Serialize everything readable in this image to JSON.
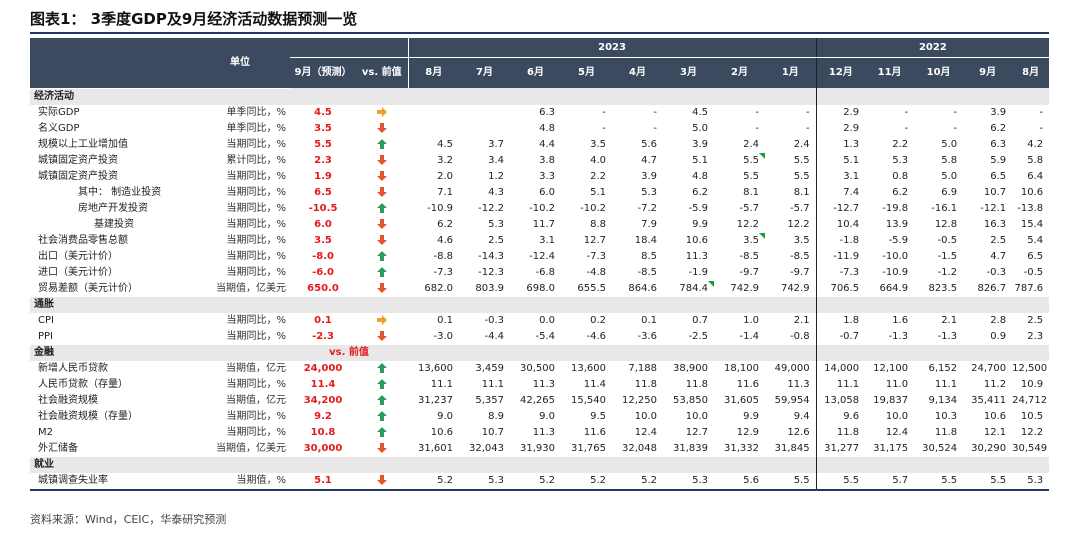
{
  "title": "图表1： 3季度GDP及9月经济活动数据预测一览",
  "source": "资料来源：Wind，CEIC，华泰研究预测",
  "header": {
    "unit_label": "单位",
    "forecast_label": "9月（预测）",
    "vs_label": "vs. 前值",
    "year_2023": "2023",
    "year_2022": "2022",
    "months_2023": [
      "8月",
      "7月",
      "6月",
      "5月",
      "4月",
      "3月",
      "2月",
      "1月"
    ],
    "months_2022": [
      "12月",
      "11月",
      "10月",
      "9月",
      "8月"
    ]
  },
  "colors": {
    "header_bg": "#3c4a60",
    "up": "#2e9b5e",
    "down": "#e0572a",
    "flat": "#f0a030",
    "forecast": "#e8191a"
  },
  "sections": [
    {
      "name": "经济活动",
      "vs_label": "",
      "rows": [
        {
          "label": "实际GDP",
          "indent": 1,
          "unit": "单季同比，%",
          "forecast": "4.5",
          "arrow": "flat",
          "values": [
            "",
            "",
            "6.3",
            "-",
            "-",
            "4.5",
            "-",
            "-"
          ],
          "values2022": [
            "2.9",
            "-",
            "-",
            "3.9",
            "-"
          ],
          "flags": []
        },
        {
          "label": "名义GDP",
          "indent": 1,
          "unit": "单季同比，%",
          "forecast": "3.5",
          "arrow": "down",
          "values": [
            "",
            "",
            "4.8",
            "-",
            "-",
            "5.0",
            "-",
            "-"
          ],
          "values2022": [
            "2.9",
            "-",
            "-",
            "6.2",
            "-"
          ],
          "flags": []
        },
        {
          "label": "规模以上工业增加值",
          "indent": 1,
          "unit": "当期同比，%",
          "forecast": "5.5",
          "arrow": "up",
          "values": [
            "4.5",
            "3.7",
            "4.4",
            "3.5",
            "5.6",
            "3.9",
            "2.4",
            "2.4"
          ],
          "values2022": [
            "1.3",
            "2.2",
            "5.0",
            "6.3",
            "4.2"
          ],
          "flags": []
        },
        {
          "label": "城镇固定资产投资",
          "indent": 1,
          "unit": "累计同比，%",
          "forecast": "2.3",
          "arrow": "down",
          "values": [
            "3.2",
            "3.4",
            "3.8",
            "4.0",
            "4.7",
            "5.1",
            "5.5",
            "5.5"
          ],
          "values2022": [
            "5.1",
            "5.3",
            "5.8",
            "5.9",
            "5.8"
          ],
          "flags": [
            6
          ]
        },
        {
          "label": "城镇固定资产投资",
          "indent": 1,
          "unit": "当期同比，%",
          "forecast": "1.9",
          "arrow": "down",
          "values": [
            "2.0",
            "1.2",
            "3.3",
            "2.2",
            "3.9",
            "4.8",
            "5.5",
            "5.5"
          ],
          "values2022": [
            "3.1",
            "0.8",
            "5.0",
            "6.5",
            "6.4"
          ],
          "flags": []
        },
        {
          "label": "其中： 制造业投资",
          "indent": 6,
          "unit": "当期同比，%",
          "forecast": "6.5",
          "arrow": "down",
          "values": [
            "7.1",
            "4.3",
            "6.0",
            "5.1",
            "5.3",
            "6.2",
            "8.1",
            "8.1"
          ],
          "values2022": [
            "7.4",
            "6.2",
            "6.9",
            "10.7",
            "10.6"
          ],
          "flags": []
        },
        {
          "label": "房地产开发投资",
          "indent": 6,
          "unit": "当期同比，%",
          "forecast": "-10.5",
          "arrow": "up",
          "values": [
            "-10.9",
            "-12.2",
            "-10.2",
            "-10.2",
            "-7.2",
            "-5.9",
            "-5.7",
            "-5.7"
          ],
          "values2022": [
            "-12.7",
            "-19.8",
            "-16.1",
            "-12.1",
            "-13.8"
          ],
          "flags": []
        },
        {
          "label": "基建投资",
          "indent": 8,
          "unit": "当期同比，%",
          "forecast": "6.0",
          "arrow": "down",
          "values": [
            "6.2",
            "5.3",
            "11.7",
            "8.8",
            "7.9",
            "9.9",
            "12.2",
            "12.2"
          ],
          "values2022": [
            "10.4",
            "13.9",
            "12.8",
            "16.3",
            "15.4"
          ],
          "flags": []
        },
        {
          "label": "社会消费品零售总额",
          "indent": 1,
          "unit": "当期同比，%",
          "forecast": "3.5",
          "arrow": "down",
          "values": [
            "4.6",
            "2.5",
            "3.1",
            "12.7",
            "18.4",
            "10.6",
            "3.5",
            "3.5"
          ],
          "values2022": [
            "-1.8",
            "-5.9",
            "-0.5",
            "2.5",
            "5.4"
          ],
          "flags": [
            6
          ]
        },
        {
          "label": "出口（美元计价）",
          "indent": 1,
          "unit": "当期同比，%",
          "forecast": "-8.0",
          "arrow": "up",
          "values": [
            "-8.8",
            "-14.3",
            "-12.4",
            "-7.3",
            "8.5",
            "11.3",
            "-8.5",
            "-8.5"
          ],
          "values2022": [
            "-11.9",
            "-10.0",
            "-1.5",
            "4.7",
            "6.5"
          ],
          "flags": []
        },
        {
          "label": "进口（美元计价）",
          "indent": 1,
          "unit": "当期同比，%",
          "forecast": "-6.0",
          "arrow": "up",
          "values": [
            "-7.3",
            "-12.3",
            "-6.8",
            "-4.8",
            "-8.5",
            "-1.9",
            "-9.7",
            "-9.7"
          ],
          "values2022": [
            "-7.3",
            "-10.9",
            "-1.2",
            "-0.3",
            "-0.5"
          ],
          "flags": []
        },
        {
          "label": "贸易差额（美元计价）",
          "indent": 1,
          "unit": "当期值，亿美元",
          "forecast": "650.0",
          "arrow": "down",
          "values": [
            "682.0",
            "803.9",
            "698.0",
            "655.5",
            "864.6",
            "784.4",
            "742.9",
            "742.9"
          ],
          "values2022": [
            "706.5",
            "664.9",
            "823.5",
            "826.7",
            "787.6"
          ],
          "flags": [
            5
          ]
        }
      ]
    },
    {
      "name": "通胀",
      "vs_label": "",
      "rows": [
        {
          "label": "CPI",
          "indent": 1,
          "unit": "当期同比，%",
          "forecast": "0.1",
          "arrow": "flat",
          "values": [
            "0.1",
            "-0.3",
            "0.0",
            "0.2",
            "0.1",
            "0.7",
            "1.0",
            "2.1"
          ],
          "values2022": [
            "1.8",
            "1.6",
            "2.1",
            "2.8",
            "2.5"
          ],
          "flags": []
        },
        {
          "label": "PPI",
          "indent": 1,
          "unit": "当期同比，%",
          "forecast": "-2.3",
          "arrow": "down",
          "values": [
            "-3.0",
            "-4.4",
            "-5.4",
            "-4.6",
            "-3.6",
            "-2.5",
            "-1.4",
            "-0.8"
          ],
          "values2022": [
            "-0.7",
            "-1.3",
            "-1.3",
            "0.9",
            "2.3"
          ],
          "flags": []
        }
      ]
    },
    {
      "name": "金融",
      "vs_label": "vs. 前值",
      "rows": [
        {
          "label": "新增人民币贷款",
          "indent": 1,
          "unit": "当期值，亿元",
          "forecast": "24,000",
          "arrow": "up",
          "values": [
            "13,600",
            "3,459",
            "30,500",
            "13,600",
            "7,188",
            "38,900",
            "18,100",
            "49,000"
          ],
          "values2022": [
            "14,000",
            "12,100",
            "6,152",
            "24,700",
            "12,500"
          ],
          "flags": []
        },
        {
          "label": "人民币贷款（存量）",
          "indent": 1,
          "unit": "当期同比，%",
          "forecast": "11.4",
          "arrow": "up",
          "values": [
            "11.1",
            "11.1",
            "11.3",
            "11.4",
            "11.8",
            "11.8",
            "11.6",
            "11.3"
          ],
          "values2022": [
            "11.1",
            "11.0",
            "11.1",
            "11.2",
            "10.9"
          ],
          "flags": []
        },
        {
          "label": "社会融资规模",
          "indent": 1,
          "unit": "当期值，亿元",
          "forecast": "34,200",
          "arrow": "up",
          "values": [
            "31,237",
            "5,357",
            "42,265",
            "15,540",
            "12,250",
            "53,850",
            "31,605",
            "59,954"
          ],
          "values2022": [
            "13,058",
            "19,837",
            "9,134",
            "35,411",
            "24,712"
          ],
          "flags": []
        },
        {
          "label": "社会融资规模（存量）",
          "indent": 1,
          "unit": "当期同比，%",
          "forecast": "9.2",
          "arrow": "up",
          "values": [
            "9.0",
            "8.9",
            "9.0",
            "9.5",
            "10.0",
            "10.0",
            "9.9",
            "9.4"
          ],
          "values2022": [
            "9.6",
            "10.0",
            "10.3",
            "10.6",
            "10.5"
          ],
          "flags": []
        },
        {
          "label": "M2",
          "indent": 1,
          "unit": "当期同比，%",
          "forecast": "10.8",
          "arrow": "up",
          "values": [
            "10.6",
            "10.7",
            "11.3",
            "11.6",
            "12.4",
            "12.7",
            "12.9",
            "12.6"
          ],
          "values2022": [
            "11.8",
            "12.4",
            "11.8",
            "12.1",
            "12.2"
          ],
          "flags": []
        },
        {
          "label": "外汇储备",
          "indent": 1,
          "unit": "当期值，亿美元",
          "forecast": "30,000",
          "arrow": "down",
          "values": [
            "31,601",
            "32,043",
            "31,930",
            "31,765",
            "32,048",
            "31,839",
            "31,332",
            "31,845"
          ],
          "values2022": [
            "31,277",
            "31,175",
            "30,524",
            "30,290",
            "30,549"
          ],
          "flags": []
        }
      ]
    },
    {
      "name": "就业",
      "vs_label": "",
      "rows": [
        {
          "label": "城镇调查失业率",
          "indent": 1,
          "unit": "当期值，%",
          "forecast": "5.1",
          "arrow": "down",
          "values": [
            "5.2",
            "5.3",
            "5.2",
            "5.2",
            "5.2",
            "5.3",
            "5.6",
            "5.5"
          ],
          "values2022": [
            "5.5",
            "5.7",
            "5.5",
            "5.5",
            "5.3"
          ],
          "flags": []
        }
      ]
    }
  ]
}
